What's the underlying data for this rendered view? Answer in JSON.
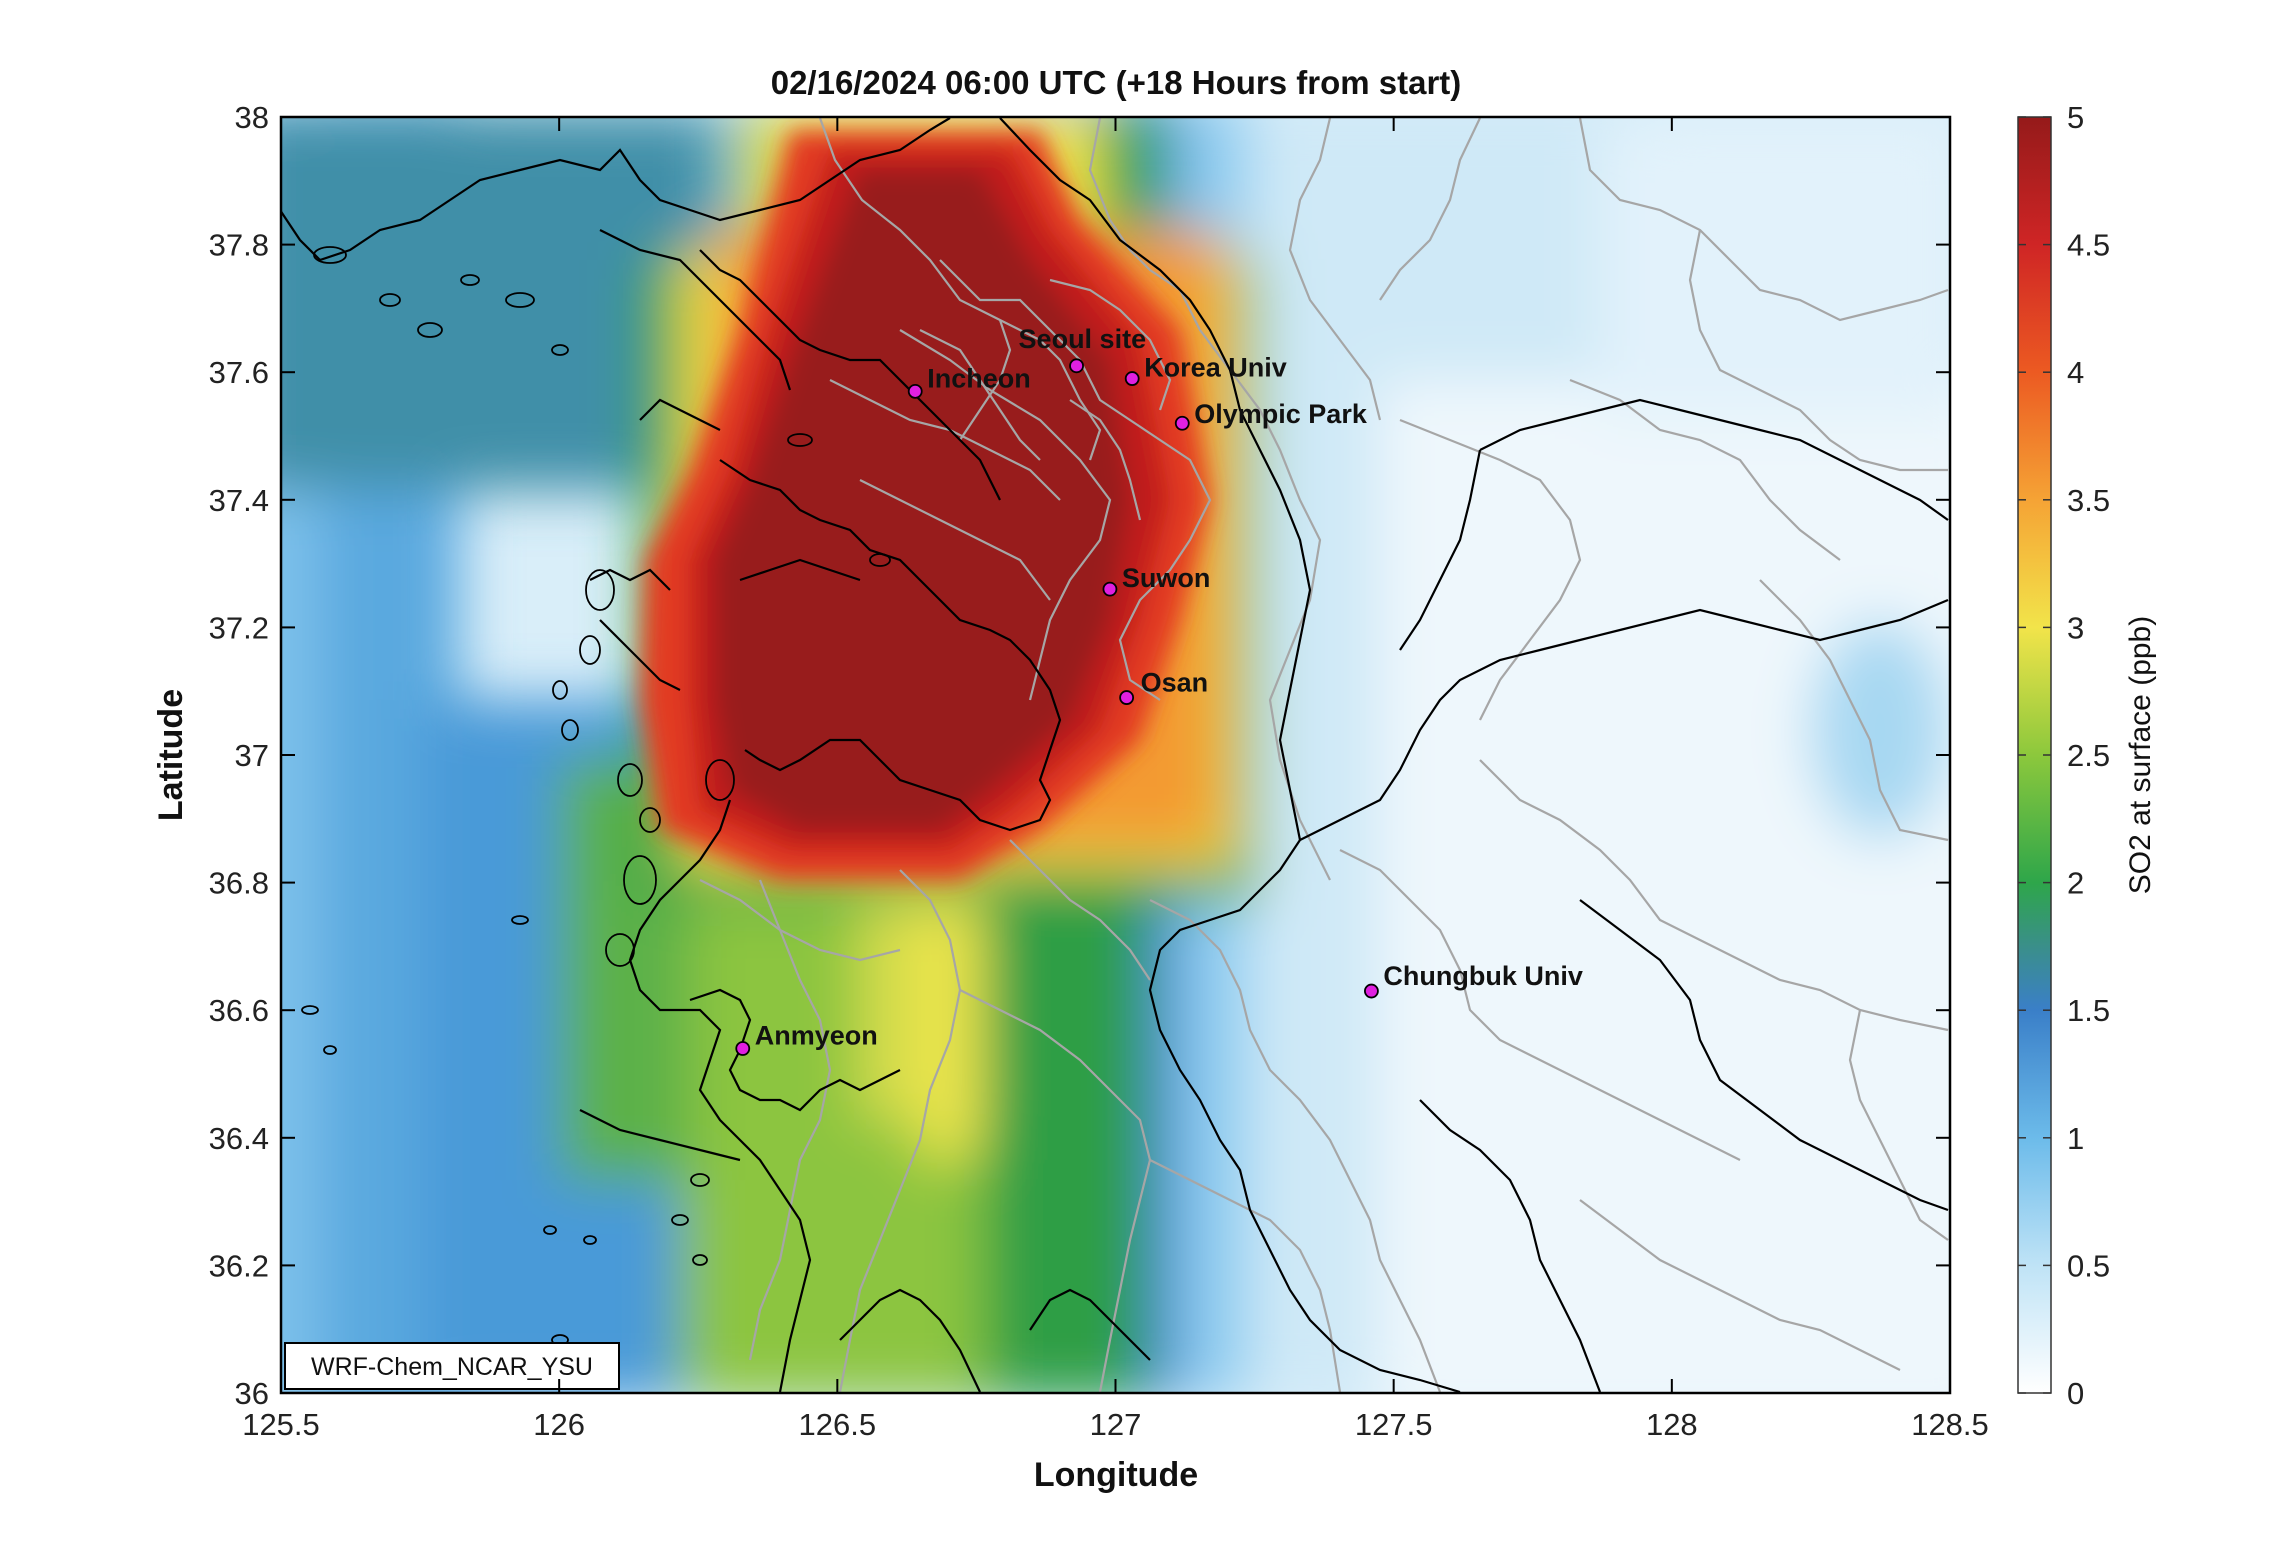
{
  "title": "02/16/2024 06:00 UTC (+18 Hours from start)",
  "xlabel": "Longitude",
  "ylabel": "Latitude",
  "colorbar_label": "SO2 at surface (ppb)",
  "model_label": "WRF-Chem_NCAR_YSU",
  "x_ticks": [
    "125.5",
    "126",
    "126.5",
    "127",
    "127.5",
    "128",
    "128.5"
  ],
  "y_ticks": [
    "36",
    "36.2",
    "36.4",
    "36.6",
    "36.8",
    "37",
    "37.2",
    "37.4",
    "37.6",
    "37.8",
    "38"
  ],
  "colorbar_ticks": [
    "0",
    "0.5",
    "1",
    "1.5",
    "2",
    "2.5",
    "3",
    "3.5",
    "4",
    "4.5",
    "5"
  ],
  "map_extent": {
    "lon": [
      125.5,
      128.5
    ],
    "lat": [
      36,
      38
    ]
  },
  "colorbar_range": [
    0,
    5
  ],
  "marker_color": "#e020e0",
  "sites": [
    {
      "name": "Seoul site",
      "lon": 126.93,
      "lat": 37.61
    },
    {
      "name": "Incheon",
      "lon": 126.64,
      "lat": 37.57
    },
    {
      "name": "Korea Univ",
      "lon": 127.03,
      "lat": 37.59
    },
    {
      "name": "Olympic Park",
      "lon": 127.12,
      "lat": 37.52
    },
    {
      "name": "Suwon",
      "lon": 126.99,
      "lat": 37.26
    },
    {
      "name": "Osan",
      "lon": 127.02,
      "lat": 37.09
    },
    {
      "name": "Chungbuk Univ",
      "lon": 127.46,
      "lat": 36.63
    },
    {
      "name": "Anmyeon",
      "lon": 126.33,
      "lat": 36.54
    }
  ]
}
